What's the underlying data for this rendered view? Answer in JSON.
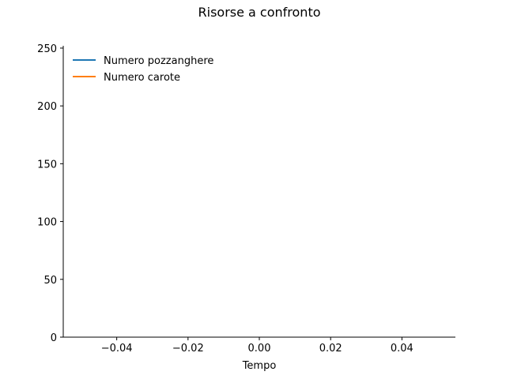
{
  "chart_data": {
    "type": "line",
    "title": "Risorse a confronto",
    "xlabel": "Tempo",
    "ylabel": "",
    "xlim": [
      -0.055,
      0.055
    ],
    "ylim": [
      0,
      252
    ],
    "xticks": [
      -0.04,
      -0.02,
      0.0,
      0.02,
      0.04
    ],
    "xtick_labels": [
      "−0.04",
      "−0.02",
      "0.00",
      "0.02",
      "0.04"
    ],
    "yticks": [
      0,
      50,
      100,
      150,
      200,
      250
    ],
    "ytick_labels": [
      "0",
      "50",
      "100",
      "150",
      "200",
      "250"
    ],
    "grid": false,
    "legend_position": "top-left",
    "series": [
      {
        "name": "Numero pozzanghere",
        "color": "#1f77b4",
        "x": [],
        "y": []
      },
      {
        "name": "Numero carote",
        "color": "#ff7f0e",
        "x": [],
        "y": []
      }
    ]
  }
}
